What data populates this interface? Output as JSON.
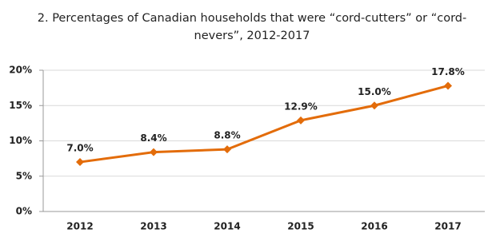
{
  "chart_data": {
    "type": "line",
    "title": "2. Percentages of Canadian households that were “cord-cutters” or “cord-nevers”, 2012-2017",
    "categories": [
      "2012",
      "2013",
      "2014",
      "2015",
      "2016",
      "2017"
    ],
    "values": [
      7.0,
      8.4,
      8.8,
      12.9,
      15.0,
      17.8
    ],
    "value_labels": [
      "7.0%",
      "8.4%",
      "8.8%",
      "12.9%",
      "15.0%",
      "17.8%"
    ],
    "color": "#e36c0a",
    "ylim": [
      0,
      20
    ],
    "yticks": [
      {
        "value": 0,
        "label": "0%"
      },
      {
        "value": 5,
        "label": "5%"
      },
      {
        "value": 10,
        "label": "10%"
      },
      {
        "value": 15,
        "label": "15%"
      },
      {
        "value": 20,
        "label": "20%"
      }
    ],
    "grid": true
  }
}
